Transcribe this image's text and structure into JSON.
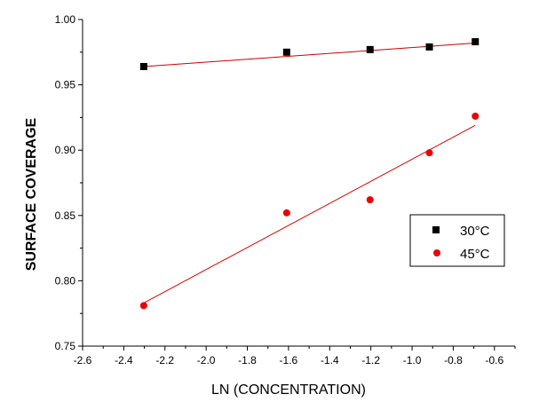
{
  "chart_data": {
    "type": "scatter",
    "title": "",
    "xlabel": "LN (CONCENTRATION)",
    "ylabel": "SURFACE COVERAGE",
    "xlim": [
      -2.6,
      -0.5
    ],
    "ylim": [
      0.75,
      1.0
    ],
    "xticks": [
      "-2.6",
      "-2.4",
      "-2.2",
      "-2.0",
      "-1.8",
      "-1.6",
      "-1.4",
      "-1.2",
      "-1.0",
      "-0.8",
      "-0.6"
    ],
    "yticks": [
      "0.75",
      "0.80",
      "0.85",
      "0.90",
      "0.95",
      "1.00"
    ],
    "grid": false,
    "legend_position": "right",
    "series": [
      {
        "name": "30°C",
        "marker": "square",
        "color": "#000000",
        "x": [
          -2.303,
          -1.609,
          -1.204,
          -0.916,
          -0.693
        ],
        "y": [
          0.964,
          0.975,
          0.977,
          0.979,
          0.983
        ],
        "fit": {
          "x": [
            -2.303,
            -0.693
          ],
          "y": [
            0.964,
            0.982
          ],
          "color": "#cc0000"
        }
      },
      {
        "name": "45°C",
        "marker": "circle",
        "color": "#ee0000",
        "x": [
          -2.303,
          -1.609,
          -1.204,
          -0.916,
          -0.693
        ],
        "y": [
          0.781,
          0.852,
          0.862,
          0.898,
          0.926
        ],
        "fit": {
          "x": [
            -2.303,
            -0.693
          ],
          "y": [
            0.783,
            0.919
          ],
          "color": "#dd0000"
        }
      }
    ]
  }
}
